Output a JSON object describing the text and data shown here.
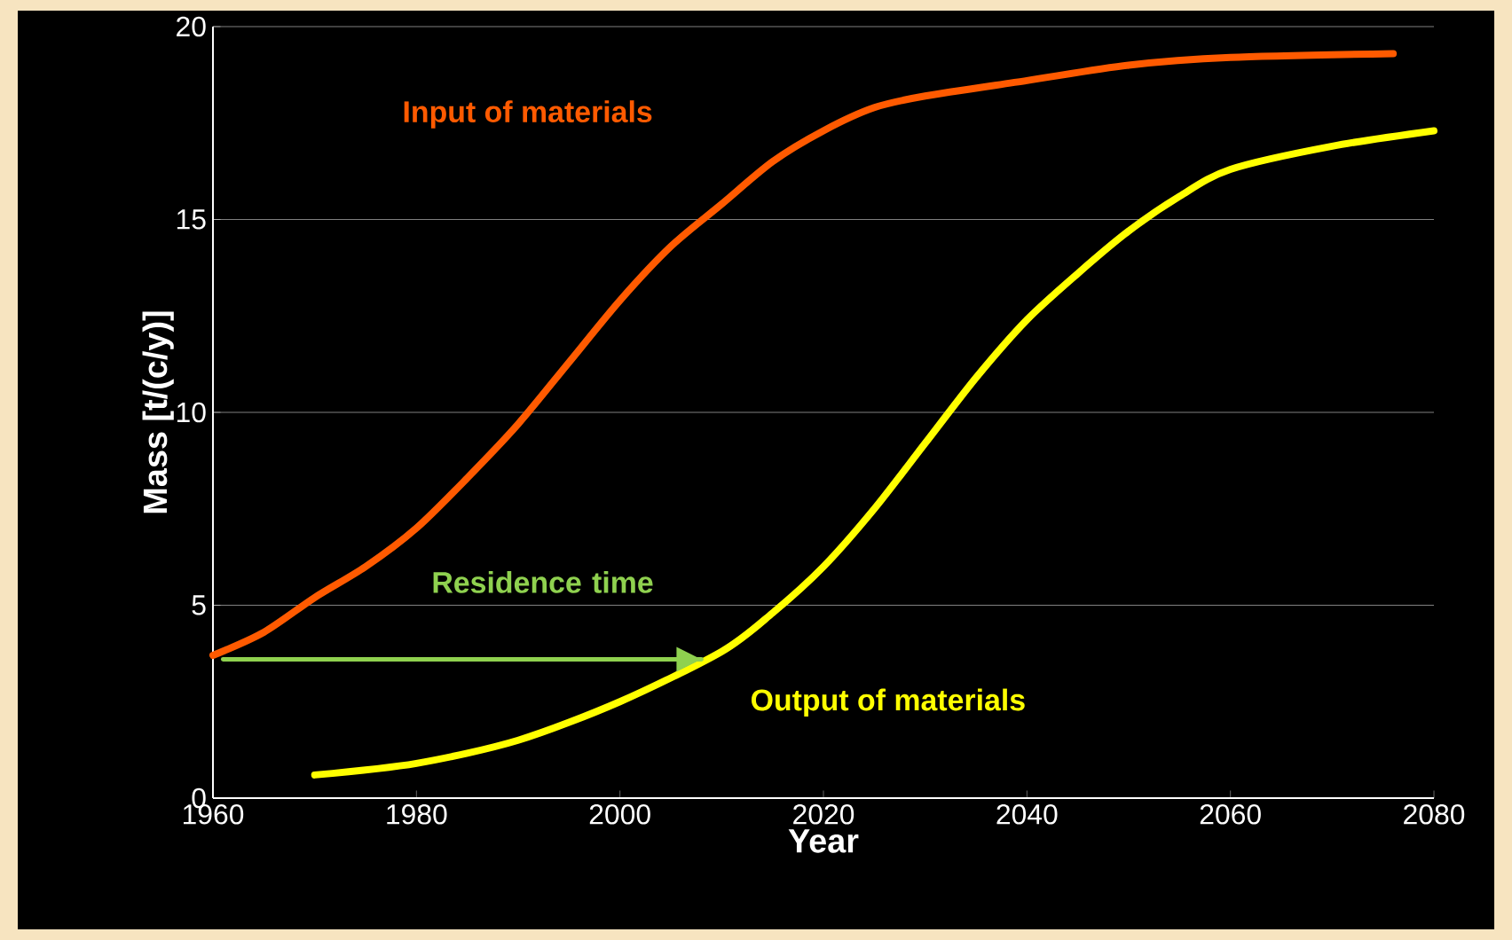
{
  "chart_data": {
    "type": "line",
    "xlabel": "Year",
    "ylabel": "Mass [t/(c/y)]",
    "xlim": [
      1960,
      2080
    ],
    "ylim": [
      0,
      20
    ],
    "xticks": [
      1960,
      1980,
      2000,
      2020,
      2040,
      2060,
      2080
    ],
    "yticks": [
      0,
      5,
      10,
      15,
      20
    ],
    "grid": "y",
    "marker": "none",
    "line_style": "solid",
    "series": [
      {
        "name": "Input of materials",
        "color": "#ff5a00",
        "x": [
          1960,
          1965,
          1970,
          1975,
          1980,
          1985,
          1990,
          1995,
          2000,
          2005,
          2010,
          2015,
          2020,
          2025,
          2030,
          2040,
          2050,
          2060,
          2076
        ],
        "values": [
          3.7,
          4.3,
          5.2,
          6.0,
          7.0,
          8.3,
          9.7,
          11.3,
          12.9,
          14.3,
          15.4,
          16.5,
          17.3,
          17.9,
          18.2,
          18.6,
          19.0,
          19.2,
          19.3
        ]
      },
      {
        "name": "Output of materials",
        "color": "#ffff00",
        "x": [
          1970,
          1980,
          1990,
          2000,
          2010,
          2015,
          2020,
          2025,
          2030,
          2035,
          2040,
          2045,
          2050,
          2055,
          2060,
          2070,
          2080
        ],
        "values": [
          0.6,
          0.9,
          1.5,
          2.5,
          3.8,
          4.8,
          6.0,
          7.5,
          9.2,
          10.9,
          12.4,
          13.6,
          14.7,
          15.6,
          16.3,
          16.9,
          17.3
        ]
      },
      {
        "type": "line",
        "color": "#8fd14f",
        "x": [
          1961,
          2008
        ],
        "values": [
          3.6,
          3.6
        ]
      }
    ],
    "annotations": [
      "Residence time"
    ]
  }
}
